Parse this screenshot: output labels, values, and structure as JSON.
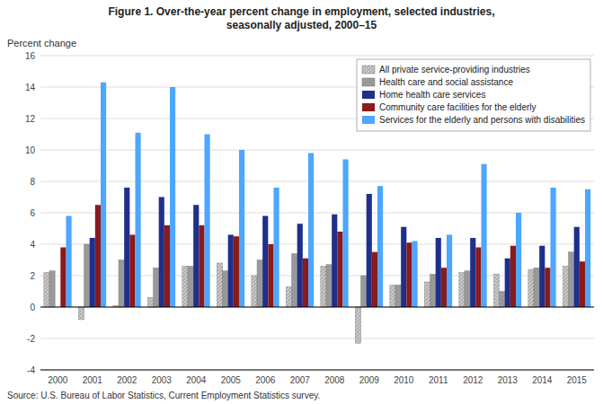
{
  "chart_data": {
    "type": "bar",
    "title": "Figure 1. Over-the-year percent change in employment, selected industries,",
    "subtitle": "seasonally adjusted, 2000–15",
    "ylabel": "Percent change",
    "annotations": [
      "Source: U.S. Bureau of Labor Statistics, Current Employment Statistics survey."
    ],
    "categories": [
      "2000",
      "2001",
      "2002",
      "2003",
      "2004",
      "2005",
      "2006",
      "2007",
      "2008",
      "2009",
      "2010",
      "2011",
      "2012",
      "2013",
      "2014",
      "2015"
    ],
    "series": [
      {
        "name": "All private service-providing industries",
        "color": "#c8c8c8",
        "values": [
          2.2,
          -0.8,
          0.1,
          0.6,
          2.6,
          2.8,
          2.0,
          1.3,
          2.6,
          -2.3,
          1.4,
          1.6,
          2.2,
          2.1,
          2.4,
          2.6
        ]
      },
      {
        "name": "Health care and social assistance",
        "color": "#999999",
        "values": [
          2.3,
          4.0,
          3.0,
          2.5,
          2.6,
          2.3,
          3.0,
          3.4,
          2.7,
          2.0,
          1.4,
          2.1,
          2.3,
          1.0,
          2.5,
          3.5
        ]
      },
      {
        "name": "Home health care services",
        "color": "#1f2f8c",
        "values": [
          0.0,
          4.4,
          7.6,
          7.0,
          6.5,
          4.6,
          5.8,
          5.3,
          5.9,
          7.2,
          5.1,
          4.4,
          4.4,
          3.1,
          3.9,
          5.1
        ]
      },
      {
        "name": "Community care facilities for the elderly",
        "color": "#8b1a1a",
        "values": [
          3.8,
          6.5,
          4.6,
          5.2,
          5.2,
          4.5,
          4.0,
          3.1,
          4.8,
          3.5,
          4.1,
          2.5,
          3.8,
          3.9,
          2.5,
          2.9
        ]
      },
      {
        "name": "Services for the elderly and persons with disabilities",
        "color": "#4da6ff",
        "values": [
          5.8,
          14.3,
          11.1,
          14.0,
          11.0,
          10.0,
          7.6,
          9.8,
          9.4,
          7.7,
          4.2,
          4.6,
          9.1,
          6.0,
          7.6,
          7.5
        ]
      }
    ],
    "ylim": [
      -4,
      16
    ],
    "yticks": [
      -4,
      -2,
      0,
      2,
      4,
      6,
      8,
      10,
      12,
      14,
      16
    ],
    "grid": true,
    "legend": "upper right"
  }
}
